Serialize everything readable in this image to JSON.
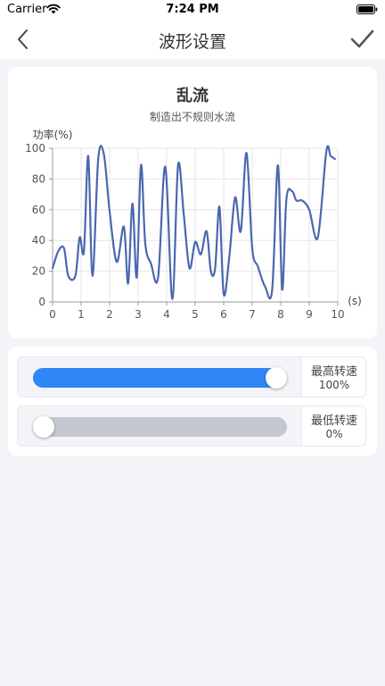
{
  "status_bar": {
    "carrier": "Carrier",
    "time": "7:24 PM"
  },
  "nav": {
    "title": "波形设置",
    "back_icon": "chevron-left-icon",
    "confirm_icon": "checkmark-icon"
  },
  "chart_data": {
    "type": "line",
    "title": "乱流",
    "subtitle": "制造出不规则水流",
    "ylabel": "功率(%)",
    "xlabel": "(s)",
    "xlim": [
      0,
      10
    ],
    "ylim": [
      0,
      100
    ],
    "xticks": [
      0,
      1,
      2,
      3,
      4,
      5,
      6,
      7,
      8,
      9,
      10
    ],
    "yticks": [
      0,
      20,
      40,
      60,
      80,
      100
    ],
    "grid": true,
    "line_color": "#4a67b0",
    "series": [
      {
        "x": [
          0,
          0.2,
          0.4,
          0.55,
          0.8,
          0.95,
          1.1,
          1.25,
          1.4,
          1.6,
          1.8,
          2.0,
          2.25,
          2.5,
          2.65,
          2.8,
          2.95,
          3.1,
          3.25,
          3.45,
          3.7,
          3.95,
          4.2,
          4.4,
          4.6,
          4.8,
          5.0,
          5.2,
          5.4,
          5.55,
          5.7,
          5.85,
          6.0,
          6.2,
          6.4,
          6.6,
          6.8,
          7.0,
          7.2,
          7.45,
          7.7,
          7.9,
          8.05,
          8.2,
          8.4,
          8.55,
          8.75,
          9.0,
          9.3,
          9.6,
          9.75,
          9.9
        ],
        "y": [
          22,
          33,
          35,
          17,
          17,
          42,
          33,
          95,
          17,
          93,
          96,
          59,
          26,
          49,
          12,
          64,
          16,
          89,
          38,
          25,
          16,
          88,
          2,
          89,
          57,
          22,
          39,
          31,
          46,
          20,
          22,
          62,
          5,
          30,
          68,
          46,
          97,
          35,
          23,
          10,
          8,
          89,
          8,
          67,
          72,
          66,
          66,
          60,
          42,
          98,
          95,
          93
        ]
      }
    ]
  },
  "speed": {
    "max": {
      "label": "最高转速",
      "value": "100%",
      "level": 1.0
    },
    "min": {
      "label": "最低转速",
      "value": "0%",
      "level": 0.0
    },
    "fill_color": "#2f86f6",
    "track_color": "#c4c7cf"
  }
}
